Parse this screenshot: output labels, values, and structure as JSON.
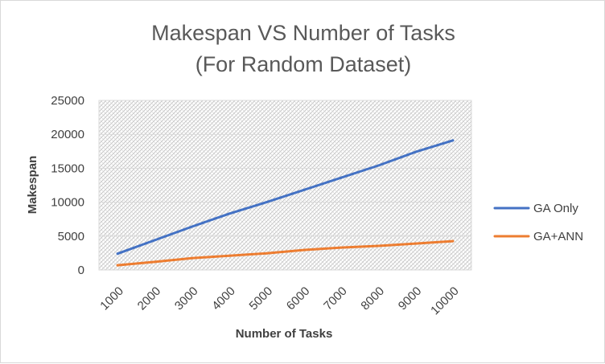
{
  "chart_data": {
    "type": "line",
    "title_line1": "Makespan VS Number of Tasks",
    "title_line2": "(For Random Dataset)",
    "xlabel": "Number of Tasks",
    "ylabel": "Makespan",
    "categories": [
      "1000",
      "2000",
      "3000",
      "4000",
      "5000",
      "6000",
      "7000",
      "8000",
      "9000",
      "10000"
    ],
    "ylim": [
      0,
      25000
    ],
    "yticks": [
      0,
      5000,
      10000,
      15000,
      20000,
      25000
    ],
    "grid": true,
    "plot_pattern": "diagonal-hatch",
    "legend_position": "right",
    "series": [
      {
        "name": "GA Only",
        "color": "#4472C4",
        "values": [
          2400,
          4400,
          6400,
          8300,
          10000,
          11800,
          13600,
          15400,
          17400,
          19100
        ]
      },
      {
        "name": "GA+ANN",
        "color": "#ED7D31",
        "values": [
          700,
          1200,
          1750,
          2100,
          2450,
          2950,
          3300,
          3550,
          3900,
          4250
        ]
      }
    ]
  }
}
